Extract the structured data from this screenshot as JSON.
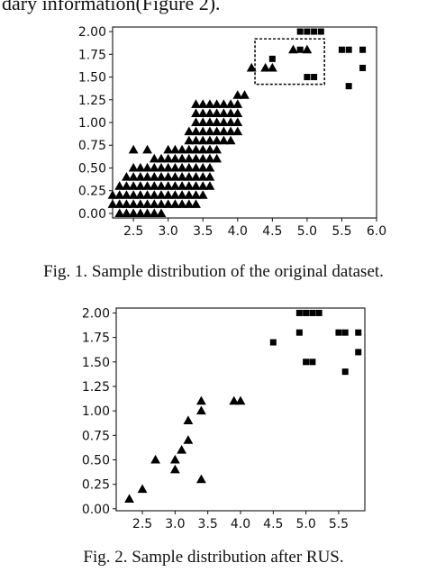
{
  "page": {
    "partial_top_text": "dary information(Figure 2).",
    "fig1_caption": "Fig. 1.   Sample distribution of the original dataset.",
    "fig2_caption": "Fig. 2.   Sample distribution after RUS."
  },
  "chart_data": [
    {
      "type": "scatter",
      "xlim": [
        2.2,
        6.0
      ],
      "ylim": [
        -0.05,
        2.05
      ],
      "xticks": [
        "2.5",
        "3.0",
        "3.5",
        "4.0",
        "4.5",
        "5.0",
        "5.5",
        "6.0"
      ],
      "yticks": [
        "0.00",
        "0.25",
        "0.50",
        "0.75",
        "1.00",
        "1.25",
        "1.50",
        "1.75",
        "2.00"
      ],
      "grid": false,
      "highlight_box": {
        "x": [
          4.25,
          5.25
        ],
        "y": [
          1.42,
          1.92
        ]
      },
      "triangles": [],
      "squares": [
        [
          4.9,
          2.0
        ],
        [
          5.0,
          2.0
        ],
        [
          5.1,
          2.0
        ],
        [
          5.2,
          2.0
        ],
        [
          4.9,
          1.8
        ],
        [
          5.5,
          1.8
        ],
        [
          5.6,
          1.8
        ],
        [
          5.8,
          1.8
        ],
        [
          5.0,
          1.5
        ],
        [
          5.1,
          1.5
        ],
        [
          5.8,
          1.6
        ],
        [
          5.6,
          1.4
        ],
        [
          4.5,
          1.7
        ]
      ]
    },
    {
      "type": "scatter",
      "xlim": [
        2.1,
        5.9
      ],
      "ylim": [
        -0.02,
        2.05
      ],
      "xticks": [
        "2.5",
        "3.0",
        "3.5",
        "4.0",
        "4.5",
        "5.0",
        "5.5"
      ],
      "yticks": [
        "0.00",
        "0.25",
        "0.50",
        "0.75",
        "1.00",
        "1.25",
        "1.50",
        "1.75",
        "2.00"
      ],
      "grid": false,
      "triangles": [
        [
          2.3,
          0.1
        ],
        [
          2.5,
          0.2
        ],
        [
          2.7,
          0.5
        ],
        [
          3.0,
          0.4
        ],
        [
          3.0,
          0.5
        ],
        [
          3.1,
          0.6
        ],
        [
          3.2,
          0.7
        ],
        [
          3.2,
          0.9
        ],
        [
          3.4,
          0.3
        ],
        [
          3.4,
          1.0
        ],
        [
          3.4,
          1.1
        ],
        [
          3.9,
          1.1
        ],
        [
          4.0,
          1.1
        ]
      ],
      "squares": [
        [
          4.9,
          2.0
        ],
        [
          5.0,
          2.0
        ],
        [
          5.1,
          2.0
        ],
        [
          5.2,
          2.0
        ],
        [
          4.9,
          1.8
        ],
        [
          5.5,
          1.8
        ],
        [
          5.6,
          1.8
        ],
        [
          5.8,
          1.8
        ],
        [
          5.0,
          1.5
        ],
        [
          5.1,
          1.5
        ],
        [
          5.8,
          1.6
        ],
        [
          5.6,
          1.4
        ],
        [
          4.5,
          1.7
        ]
      ]
    }
  ]
}
